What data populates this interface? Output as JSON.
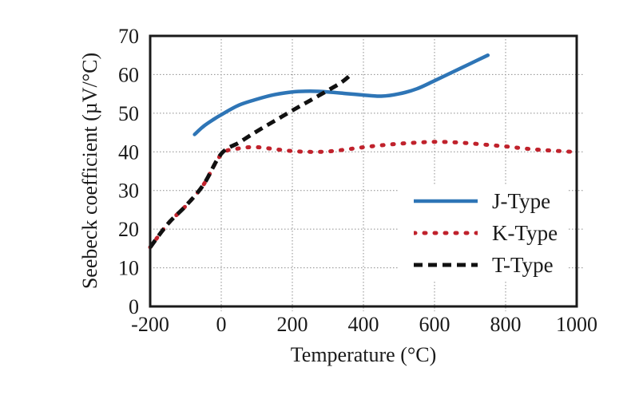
{
  "figure": {
    "background": "#ffffff",
    "axis_color": "#1a1a1a",
    "grid_color": "#8c8c8c",
    "text_color": "#1a1a1a"
  },
  "chart_data": {
    "type": "line",
    "title": "",
    "xlabel": "Temperature (°C)",
    "ylabel": "Seebeck coefficient (µV/°C)",
    "xlim": [
      -200,
      1000
    ],
    "ylim": [
      0,
      70
    ],
    "x_ticks": [
      -200,
      0,
      200,
      400,
      600,
      800,
      1000
    ],
    "y_ticks": [
      0,
      10,
      20,
      30,
      40,
      50,
      60,
      70
    ],
    "grid": true,
    "legend_position": "inside-right",
    "series": [
      {
        "name": "J-Type",
        "color": "#2E75B6",
        "style": "solid",
        "points": [
          [
            -75,
            44.5
          ],
          [
            -50,
            46.6
          ],
          [
            -25,
            48.2
          ],
          [
            0,
            49.6
          ],
          [
            50,
            52.1
          ],
          [
            100,
            53.6
          ],
          [
            150,
            54.8
          ],
          [
            200,
            55.5
          ],
          [
            250,
            55.7
          ],
          [
            300,
            55.5
          ],
          [
            350,
            55.1
          ],
          [
            400,
            54.7
          ],
          [
            450,
            54.4
          ],
          [
            500,
            55.0
          ],
          [
            550,
            56.3
          ],
          [
            600,
            58.4
          ],
          [
            650,
            60.6
          ],
          [
            700,
            62.8
          ],
          [
            750,
            65.0
          ]
        ]
      },
      {
        "name": "K-Type",
        "color": "#C0222C",
        "style": "dotted",
        "points": [
          [
            -200,
            15.3
          ],
          [
            -150,
            21.4
          ],
          [
            -100,
            26.0
          ],
          [
            -50,
            31.5
          ],
          [
            0,
            39.3
          ],
          [
            50,
            40.9
          ],
          [
            100,
            41.2
          ],
          [
            150,
            40.7
          ],
          [
            200,
            40.2
          ],
          [
            250,
            40.0
          ],
          [
            300,
            40.1
          ],
          [
            350,
            40.6
          ],
          [
            400,
            41.2
          ],
          [
            450,
            41.7
          ],
          [
            500,
            42.1
          ],
          [
            550,
            42.4
          ],
          [
            600,
            42.6
          ],
          [
            650,
            42.5
          ],
          [
            700,
            42.2
          ],
          [
            750,
            41.8
          ],
          [
            800,
            41.4
          ],
          [
            850,
            40.9
          ],
          [
            900,
            40.5
          ],
          [
            990,
            40.0
          ]
        ]
      },
      {
        "name": "T-Type",
        "color": "#111111",
        "style": "dashed",
        "points": [
          [
            -200,
            15.3
          ],
          [
            -150,
            21.4
          ],
          [
            -100,
            26.0
          ],
          [
            -50,
            31.5
          ],
          [
            0,
            39.5
          ],
          [
            50,
            42.4
          ],
          [
            100,
            45.3
          ],
          [
            150,
            48.0
          ],
          [
            200,
            50.7
          ],
          [
            250,
            53.3
          ],
          [
            300,
            55.9
          ],
          [
            340,
            58.1
          ],
          [
            370,
            60.4
          ]
        ]
      }
    ]
  }
}
